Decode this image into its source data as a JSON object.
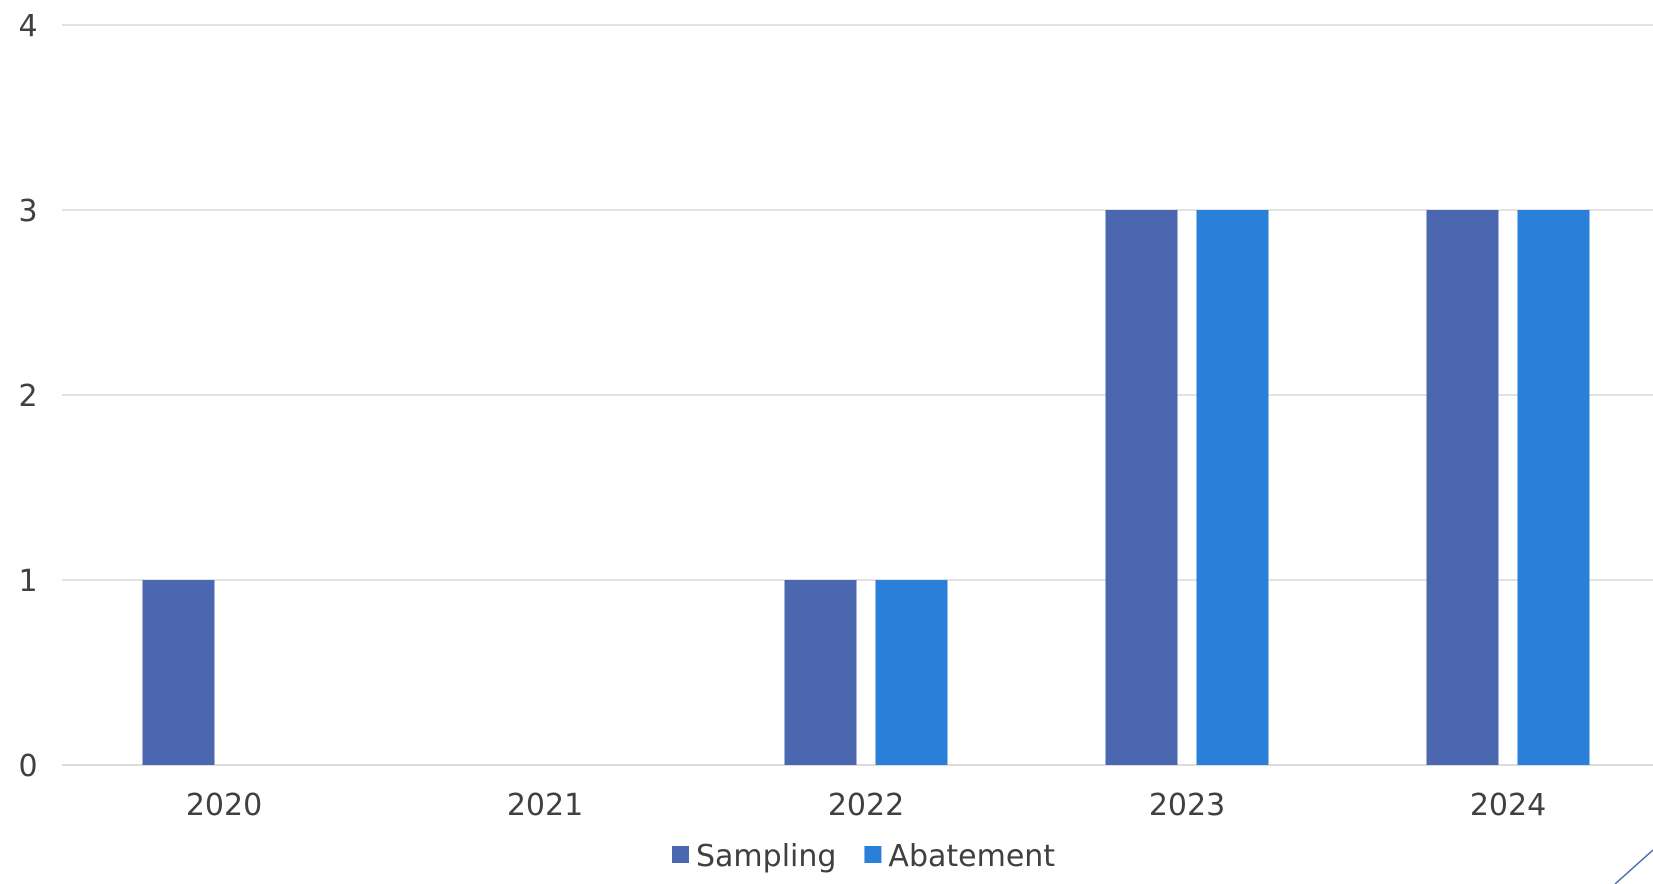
{
  "chart_data": {
    "type": "bar",
    "title": "",
    "xlabel": "",
    "ylabel": "",
    "categories": [
      "2020",
      "2021",
      "2022",
      "2023",
      "2024"
    ],
    "series": [
      {
        "name": "Sampling",
        "values": [
          1,
          0,
          1,
          3,
          3
        ],
        "color": "#4a67b0"
      },
      {
        "name": "Abatement",
        "values": [
          0,
          0,
          1,
          3,
          3
        ],
        "color": "#2a7fd8"
      }
    ],
    "ylim": [
      0,
      4
    ],
    "yticks": [
      "0",
      "1",
      "2",
      "3",
      "4"
    ],
    "grid": true,
    "legend_position": "bottom-center"
  }
}
